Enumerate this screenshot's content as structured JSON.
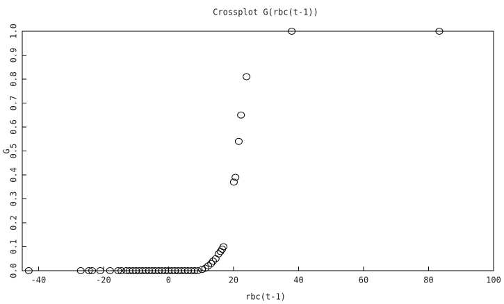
{
  "chart_data": {
    "type": "scatter",
    "title": "Crossplot G(rbc(t-1))",
    "x_label": "rbc(t-1)",
    "y_label": "G",
    "color": "#000000",
    "x": [
      -43,
      -27,
      -24.5,
      -23.5,
      -21,
      -18,
      -15.5,
      -14.5,
      -13,
      -12,
      -11,
      -10,
      -9,
      -8,
      -7,
      -6,
      -5,
      -4,
      -3,
      -2,
      -1,
      0,
      1,
      2,
      3,
      4,
      5,
      6,
      7,
      8,
      9,
      10.3,
      11.3,
      12.2,
      13.1,
      13.7,
      14.5,
      15.4,
      16,
      16.5,
      16.9,
      20.1,
      20.6,
      21.6,
      22.3,
      24,
      37.9,
      83.3
    ],
    "values": [
      0,
      0,
      0,
      0,
      0,
      0,
      0,
      0,
      0,
      0,
      0,
      0,
      0,
      0,
      0,
      0,
      0,
      0,
      0,
      0,
      0,
      0,
      0,
      0,
      0,
      0,
      0,
      0,
      0,
      0,
      0,
      0.005,
      0.01,
      0.02,
      0.03,
      0.04,
      0.05,
      0.07,
      0.08,
      0.09,
      0.1,
      0.37,
      0.39,
      0.54,
      0.65,
      0.81,
      1.0,
      1.0
    ],
    "xlim": [
      -45,
      100
    ],
    "xticks": [
      -40,
      -20,
      0,
      20,
      40,
      60,
      80,
      100
    ],
    "ylim": [
      0,
      1
    ],
    "yticks": [
      {
        "value": 0,
        "label": "0.0"
      },
      0.1,
      0.2,
      0.3,
      0.4,
      0.5,
      0.6,
      0.7,
      0.8,
      0.9,
      {
        "value": 1,
        "label": "1.0"
      }
    ],
    "grid": false
  }
}
